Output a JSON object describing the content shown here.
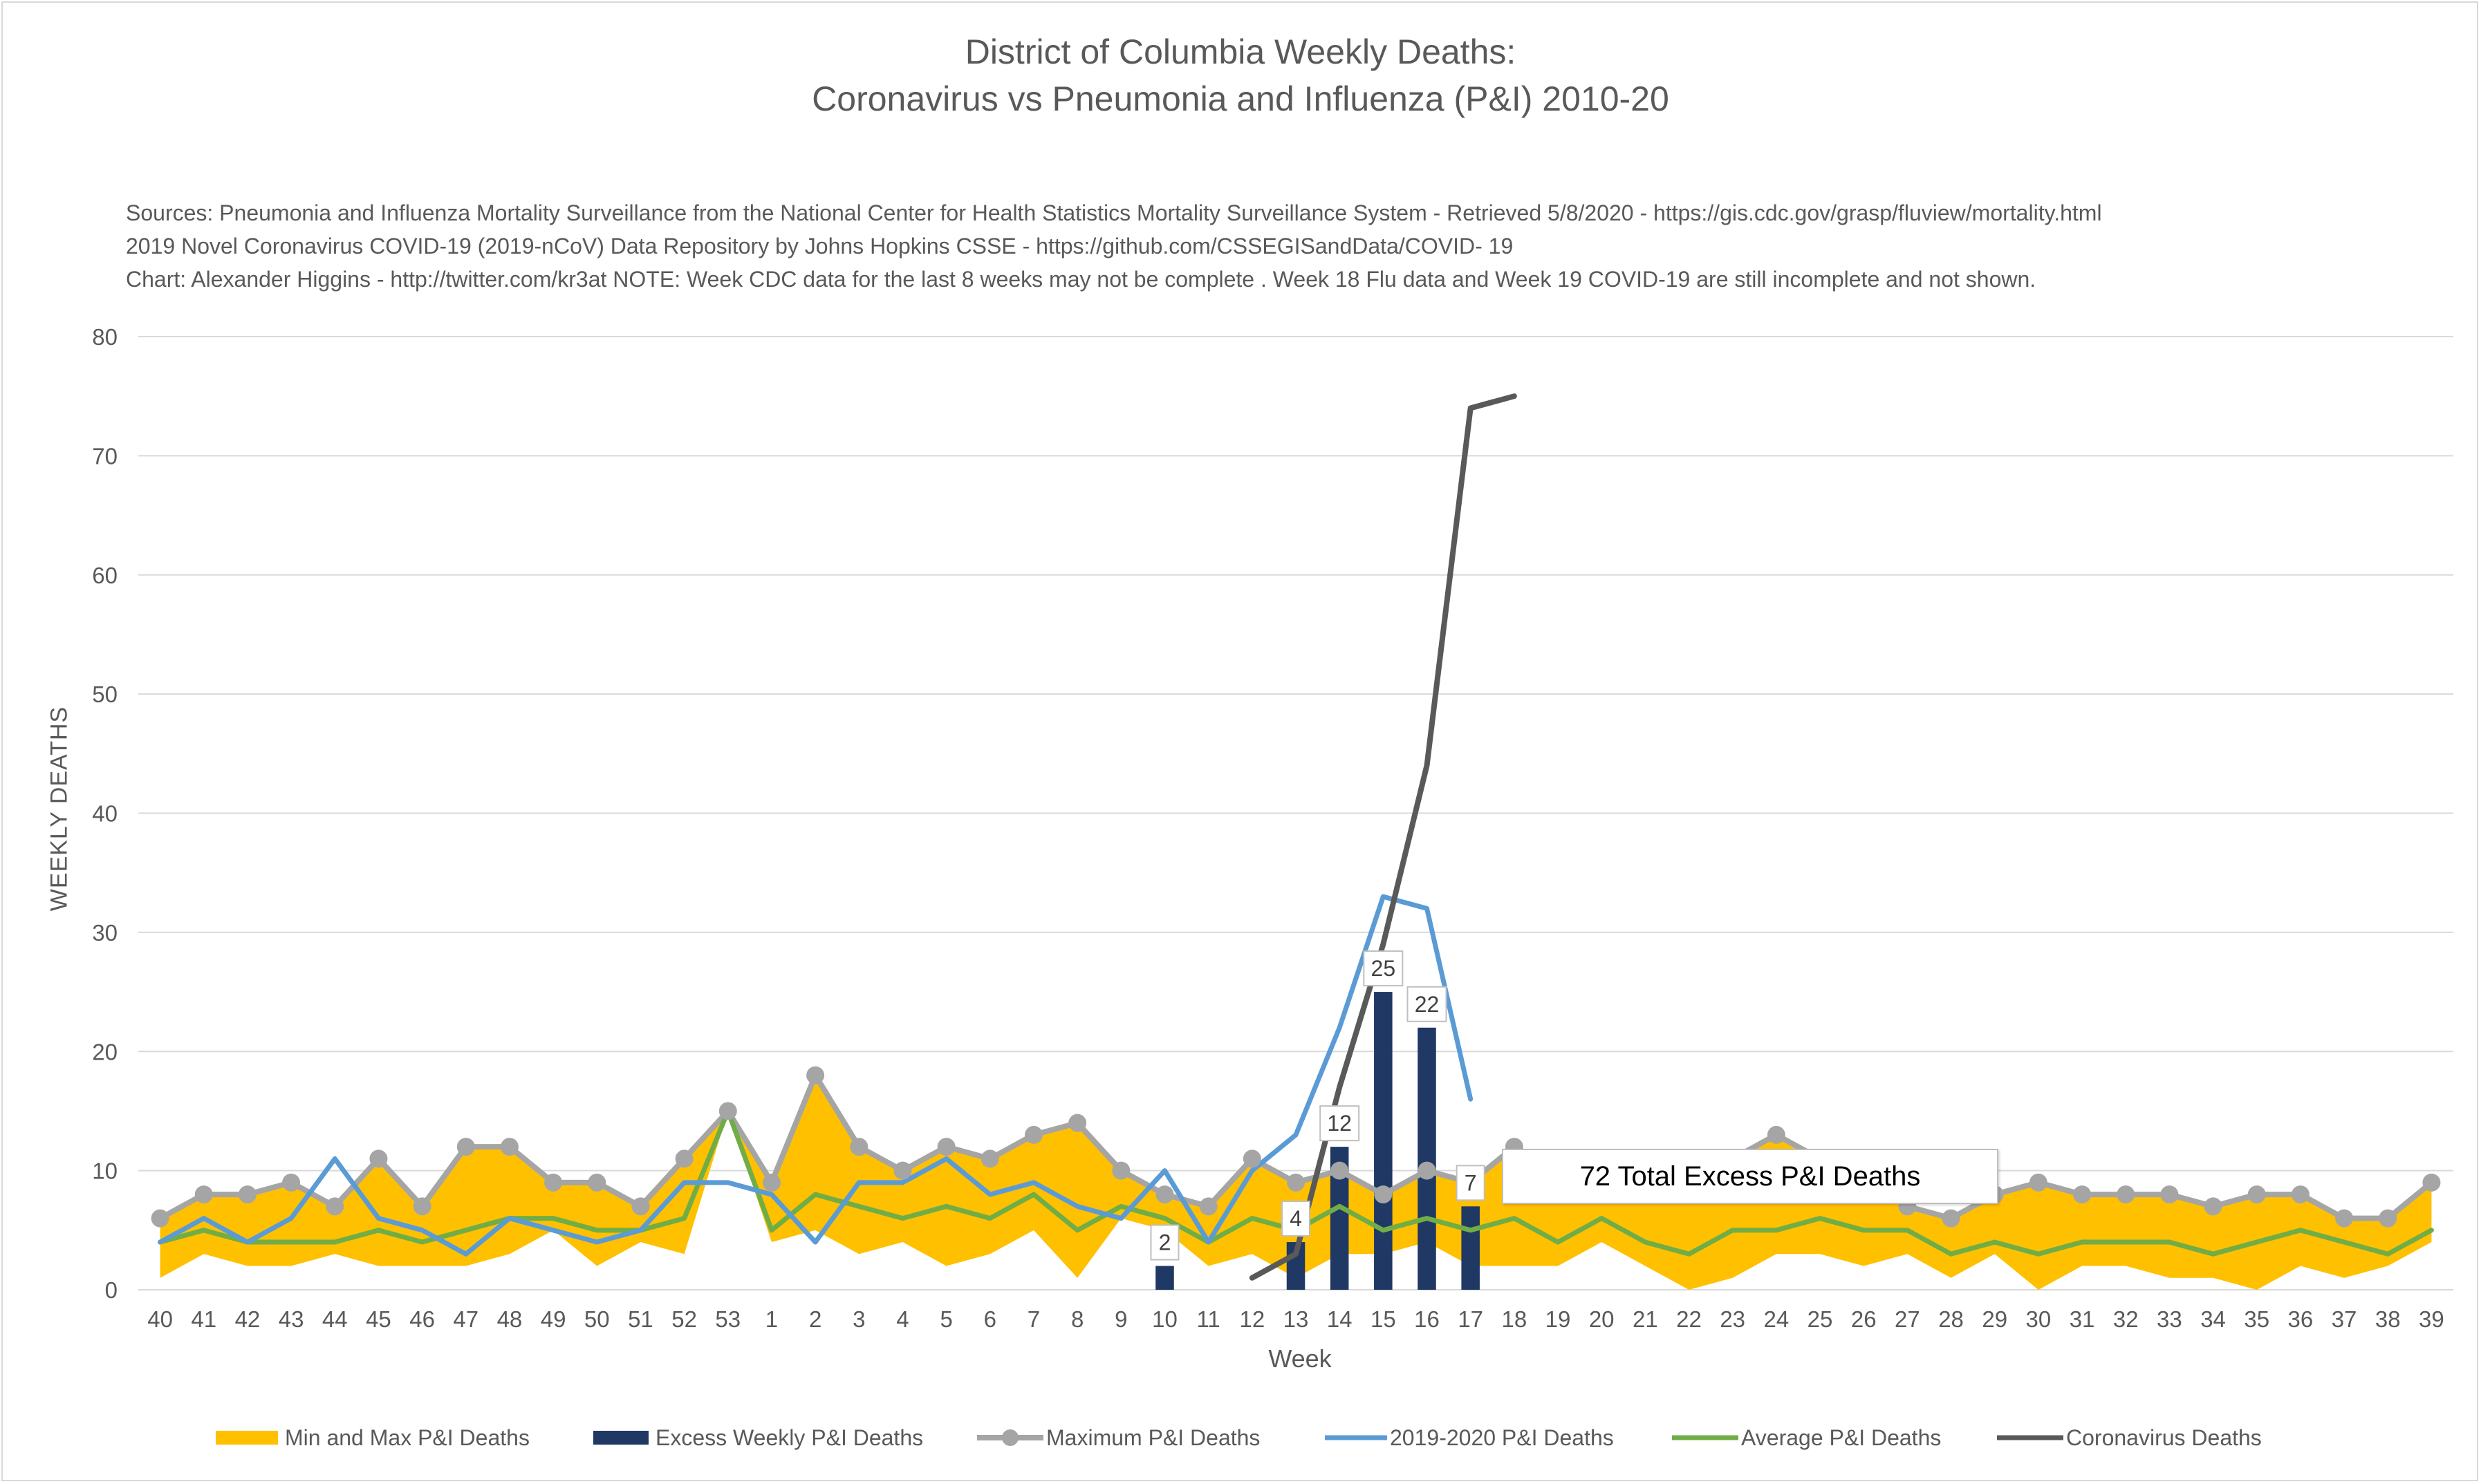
{
  "title_line1": "District of Columbia Weekly Deaths:",
  "title_line2": "Coronavirus vs Pneumonia and Influenza (P&I) 2010-20",
  "sources": [
    "Sources: Pneumonia and Influenza Mortality Surveillance from the National Center for Health Statistics Mortality Surveillance System - Retrieved 5/8/2020 - https://gis.cdc.gov/grasp/fluview/mortality.html",
    "2019 Novel Coronavirus COVID-19 (2019-nCoV) Data Repository by Johns Hopkins CSSE - https://github.com/CSSEGISandData/COVID- 19",
    "Chart: Alexander Higgins - http://twitter.com/kr3at   NOTE: Week CDC data for the last 8 weeks may not be complete . Week 18 Flu data and Week 19 COVID-19 are still incomplete and not shown."
  ],
  "callout": "72 Total Excess P&I Deaths",
  "colors": {
    "range": "#FFC000",
    "excess": "#203864",
    "maximum": "#A5A5A5",
    "current": "#5B9BD5",
    "average": "#70AD47",
    "coronavirus": "#595959",
    "grid": "#d9d9d9"
  },
  "chart_data": {
    "type": "line",
    "title": "District of Columbia Weekly Deaths: Coronavirus vs Pneumonia and Influenza (P&I) 2010-20",
    "xlabel": "Week",
    "ylabel": "WEEKLY DEATHS",
    "ylim": [
      0,
      80
    ],
    "yticks": [
      0,
      10,
      20,
      30,
      40,
      50,
      60,
      70,
      80
    ],
    "grid": true,
    "legend_position": "bottom",
    "categories": [
      "40",
      "41",
      "42",
      "43",
      "44",
      "45",
      "46",
      "47",
      "48",
      "49",
      "50",
      "51",
      "52",
      "53",
      "1",
      "2",
      "3",
      "4",
      "5",
      "6",
      "7",
      "8",
      "9",
      "10",
      "11",
      "12",
      "13",
      "14",
      "15",
      "16",
      "17",
      "18",
      "19",
      "20",
      "21",
      "22",
      "23",
      "24",
      "25",
      "26",
      "27",
      "28",
      "29",
      "30",
      "31",
      "32",
      "33",
      "34",
      "35",
      "36",
      "37",
      "38",
      "39"
    ],
    "series": [
      {
        "name": "Min and Max P&I Deaths",
        "type": "area",
        "min": [
          1,
          3,
          2,
          2,
          3,
          2,
          2,
          2,
          3,
          5,
          2,
          4,
          3,
          15,
          4,
          5,
          3,
          4,
          2,
          3,
          5,
          1,
          6,
          5,
          2,
          3,
          1,
          3,
          3,
          4,
          2,
          2,
          2,
          4,
          2,
          0,
          1,
          3,
          3,
          2,
          3,
          1,
          3,
          0,
          2,
          2,
          1,
          1,
          0,
          2,
          1,
          2,
          4
        ],
        "max": [
          6,
          8,
          8,
          9,
          7,
          11,
          7,
          12,
          12,
          9,
          9,
          7,
          11,
          15,
          9,
          18,
          12,
          10,
          12,
          11,
          13,
          14,
          10,
          8,
          7,
          11,
          9,
          10,
          8,
          10,
          9,
          12,
          10,
          10,
          10,
          10,
          11,
          13,
          11,
          10,
          7,
          6,
          8,
          9,
          8,
          8,
          8,
          7,
          8,
          8,
          6,
          6,
          9
        ]
      },
      {
        "name": "Excess Weekly P&I Deaths",
        "type": "bar",
        "values": [
          null,
          null,
          null,
          null,
          null,
          null,
          null,
          null,
          null,
          null,
          null,
          null,
          null,
          null,
          null,
          null,
          null,
          null,
          null,
          null,
          null,
          null,
          null,
          2,
          null,
          null,
          4,
          12,
          25,
          22,
          7,
          null,
          null,
          null,
          null,
          null,
          null,
          null,
          null,
          null,
          null,
          null,
          null,
          null,
          null,
          null,
          null,
          null,
          null,
          null,
          null,
          null,
          null
        ]
      },
      {
        "name": "Maximum P&I Deaths",
        "type": "line-marker",
        "values": [
          6,
          8,
          8,
          9,
          7,
          11,
          7,
          12,
          12,
          9,
          9,
          7,
          11,
          15,
          9,
          18,
          12,
          10,
          12,
          11,
          13,
          14,
          10,
          8,
          7,
          11,
          9,
          10,
          8,
          10,
          9,
          12,
          10,
          10,
          10,
          10,
          11,
          13,
          11,
          10,
          7,
          6,
          8,
          9,
          8,
          8,
          8,
          7,
          8,
          8,
          6,
          6,
          9
        ]
      },
      {
        "name": "2019-2020 P&I Deaths",
        "type": "line",
        "values": [
          4,
          6,
          4,
          6,
          11,
          6,
          5,
          3,
          6,
          5,
          4,
          5,
          9,
          9,
          8,
          4,
          9,
          9,
          11,
          8,
          9,
          7,
          6,
          10,
          4,
          10,
          13,
          22,
          33,
          32,
          16,
          null,
          null,
          null,
          null,
          null,
          null,
          null,
          null,
          null,
          null,
          null,
          null,
          null,
          null,
          null,
          null,
          null,
          null,
          null,
          null,
          null,
          null
        ]
      },
      {
        "name": "Average P&I Deaths",
        "type": "line",
        "values": [
          4,
          5,
          4,
          4,
          4,
          5,
          4,
          5,
          6,
          6,
          5,
          5,
          6,
          15,
          5,
          8,
          7,
          6,
          7,
          6,
          8,
          5,
          7,
          6,
          4,
          6,
          5,
          7,
          5,
          6,
          5,
          6,
          4,
          6,
          4,
          3,
          5,
          5,
          6,
          5,
          5,
          3,
          4,
          3,
          4,
          4,
          4,
          3,
          4,
          5,
          4,
          3,
          5
        ]
      },
      {
        "name": "Coronavirus Deaths",
        "type": "line",
        "values": [
          null,
          null,
          null,
          null,
          null,
          null,
          null,
          null,
          null,
          null,
          null,
          null,
          null,
          null,
          null,
          null,
          null,
          null,
          null,
          null,
          null,
          null,
          null,
          null,
          null,
          1,
          3,
          17,
          29,
          44,
          74,
          75,
          null,
          null,
          null,
          null,
          null,
          null,
          null,
          null,
          null,
          null,
          null,
          null,
          null,
          null,
          null,
          null,
          null,
          null,
          null,
          null,
          null
        ]
      }
    ]
  }
}
